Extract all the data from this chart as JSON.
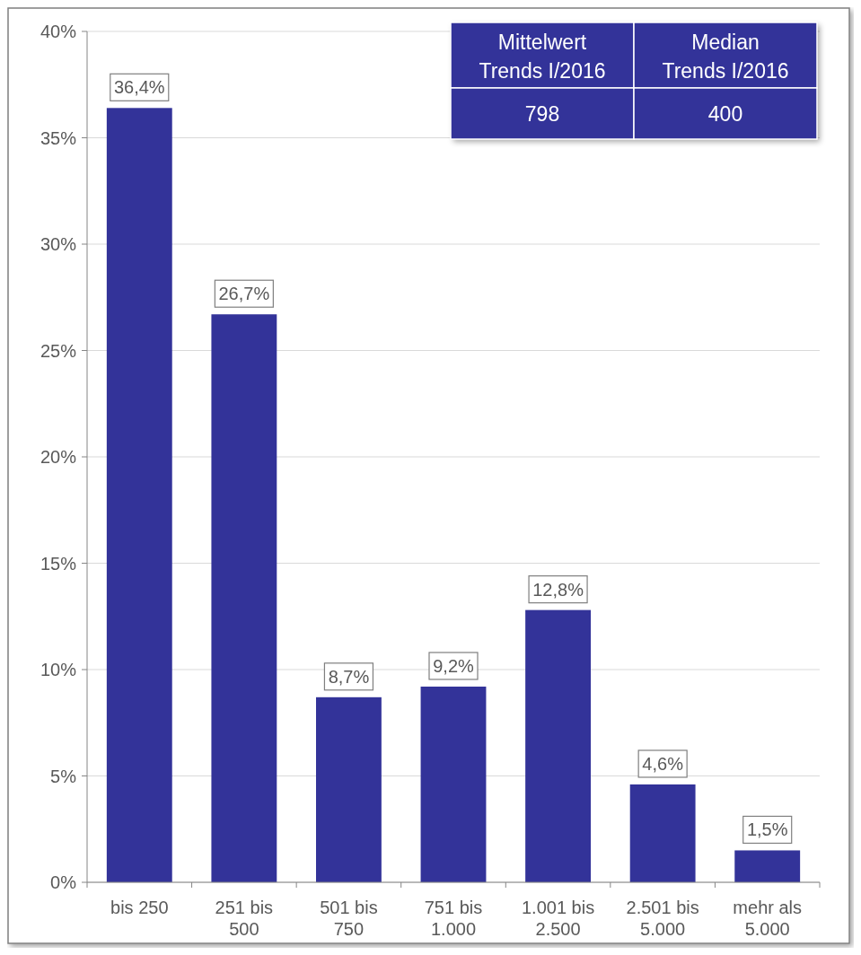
{
  "chart_data": {
    "type": "bar",
    "categories": [
      "bis 250",
      "251 bis 500",
      "501 bis 750",
      "751 bis 1.000",
      "1.001 bis 2.500",
      "2.501 bis 5.000",
      "mehr als 5.000"
    ],
    "values": [
      36.4,
      26.7,
      8.7,
      9.2,
      12.8,
      4.6,
      1.5
    ],
    "value_labels": [
      "36,4%",
      "26,7%",
      "8,7%",
      "9,2%",
      "12,8%",
      "4,6%",
      "1,5%"
    ],
    "color": "#333399",
    "ylim": [
      0,
      40
    ],
    "yticks": [
      {
        "value": 0,
        "label": "0%"
      },
      {
        "value": 5,
        "label": "5%"
      },
      {
        "value": 10,
        "label": "10%"
      },
      {
        "value": 15,
        "label": "15%"
      },
      {
        "value": 20,
        "label": "20%"
      },
      {
        "value": 25,
        "label": "25%"
      },
      {
        "value": 30,
        "label": "30%"
      },
      {
        "value": 35,
        "label": "35%"
      },
      {
        "value": 40,
        "label": "40%"
      }
    ],
    "grid": "y",
    "annotations": [
      "Mittelwert\nTrends I/2016",
      "Median\nTrends I/2016",
      "798",
      "400"
    ]
  }
}
